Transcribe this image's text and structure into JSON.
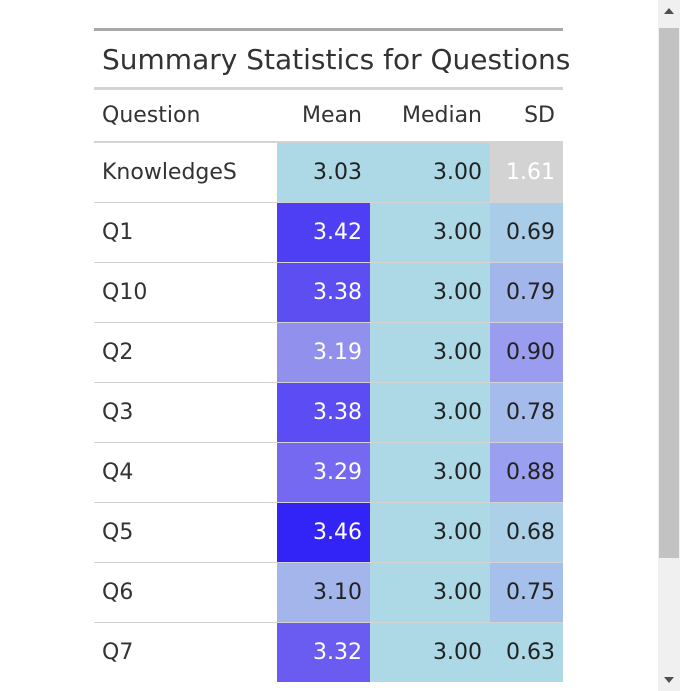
{
  "table": {
    "caption": "Summary Statistics for Questions",
    "columns": [
      "Question",
      "Mean",
      "Median",
      "SD"
    ],
    "rows": [
      {
        "question": "KnowledgeS",
        "mean": "3.03",
        "median": "3.00",
        "sd": "1.61",
        "mean_color": "#add8e6",
        "median_color": "#add8e6",
        "sd_color": "#d3d3d3",
        "mean_text": "dark",
        "sd_text": "light"
      },
      {
        "question": "Q1",
        "mean": "3.42",
        "median": "3.00",
        "sd": "0.69",
        "mean_color": "#4f3ff4",
        "median_color": "#add8e6",
        "sd_color": "#a9cde8",
        "mean_text": "light",
        "sd_text": "dark"
      },
      {
        "question": "Q10",
        "mean": "3.38",
        "median": "3.00",
        "sd": "0.79",
        "mean_color": "#5d4ef2",
        "median_color": "#add8e6",
        "sd_color": "#a3b6eb",
        "mean_text": "light",
        "sd_text": "dark"
      },
      {
        "question": "Q2",
        "mean": "3.19",
        "median": "3.00",
        "sd": "0.90",
        "mean_color": "#9190ec",
        "median_color": "#add8e6",
        "sd_color": "#9a9cef",
        "mean_text": "light",
        "sd_text": "dark"
      },
      {
        "question": "Q3",
        "mean": "3.38",
        "median": "3.00",
        "sd": "0.78",
        "mean_color": "#5b4cf3",
        "median_color": "#add8e6",
        "sd_color": "#a4bbeb",
        "mean_text": "light",
        "sd_text": "dark"
      },
      {
        "question": "Q4",
        "mean": "3.29",
        "median": "3.00",
        "sd": "0.88",
        "mean_color": "#7469f0",
        "median_color": "#add8e6",
        "sd_color": "#9a9ff0",
        "mean_text": "light",
        "sd_text": "dark"
      },
      {
        "question": "Q5",
        "mean": "3.46",
        "median": "3.00",
        "sd": "0.68",
        "mean_color": "#3224f7",
        "median_color": "#add8e6",
        "sd_color": "#abd0e7",
        "mean_text": "light",
        "sd_text": "dark"
      },
      {
        "question": "Q6",
        "mean": "3.10",
        "median": "3.00",
        "sd": "0.75",
        "mean_color": "#a3b5eb",
        "median_color": "#add8e6",
        "sd_color": "#a5c0ea",
        "mean_text": "dark",
        "sd_text": "dark"
      },
      {
        "question": "Q7",
        "mean": "3.32",
        "median": "3.00",
        "sd": "0.63",
        "mean_color": "#6a5cf1",
        "median_color": "#add8e6",
        "sd_color": "#add8e6",
        "mean_text": "light",
        "sd_text": "dark"
      }
    ]
  }
}
